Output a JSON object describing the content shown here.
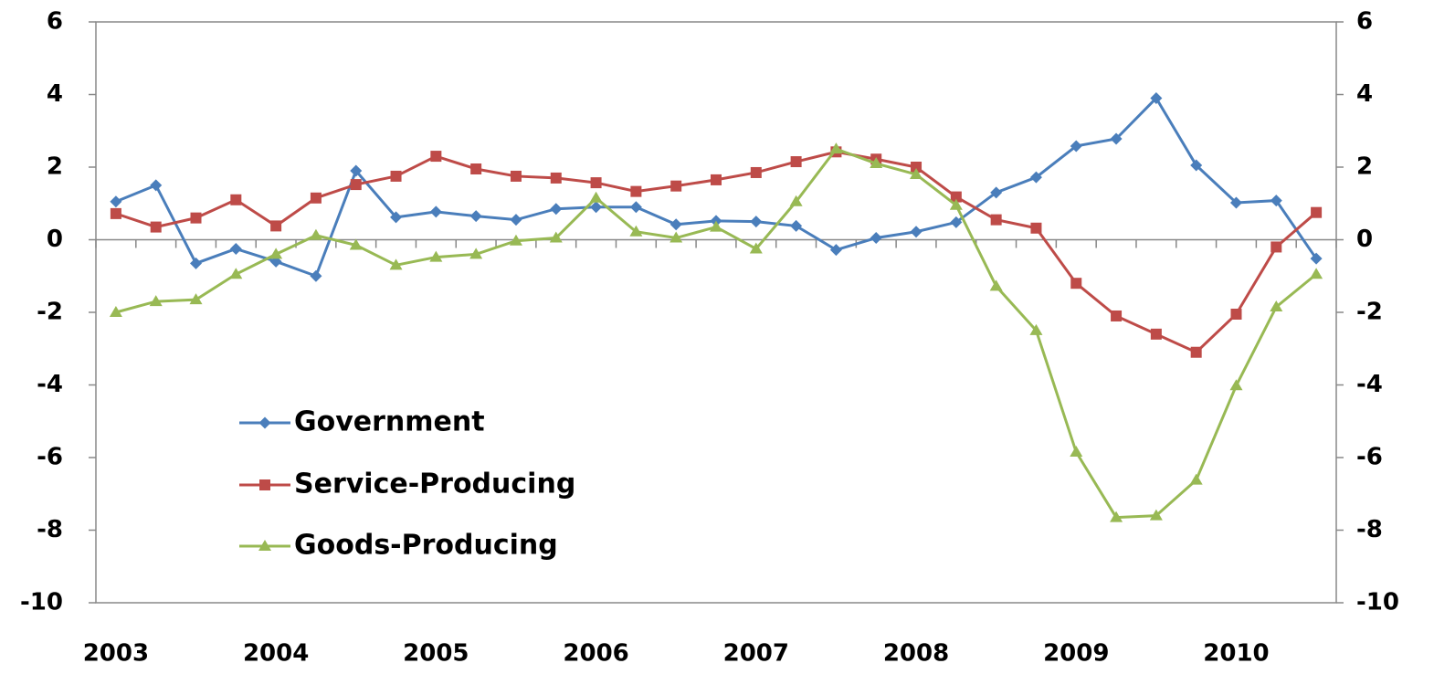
{
  "chart_data": {
    "type": "line",
    "categories": [
      "2003",
      null,
      null,
      null,
      "2004",
      null,
      null,
      null,
      "2005",
      null,
      null,
      null,
      "2006",
      null,
      null,
      null,
      "2007",
      null,
      null,
      null,
      "2008",
      null,
      null,
      null,
      "2009",
      null,
      null,
      null,
      "2010",
      null,
      null
    ],
    "series": [
      {
        "name": "Government",
        "color": "#4a7ebb",
        "marker": "diamond",
        "values": [
          1.05,
          1.5,
          -0.65,
          -0.25,
          -0.6,
          -1.0,
          1.9,
          0.62,
          0.77,
          0.65,
          0.55,
          0.85,
          0.9,
          0.9,
          0.42,
          0.52,
          0.5,
          0.38,
          -0.28,
          0.05,
          0.22,
          0.48,
          1.3,
          1.72,
          2.58,
          2.78,
          3.9,
          2.05,
          1.02,
          1.08,
          -0.52
        ]
      },
      {
        "name": "Service-Producing",
        "color": "#be4b48",
        "marker": "square",
        "values": [
          0.72,
          0.35,
          0.6,
          1.1,
          0.38,
          1.15,
          1.52,
          1.75,
          2.3,
          1.95,
          1.75,
          1.7,
          1.57,
          1.33,
          1.48,
          1.65,
          1.85,
          2.15,
          2.42,
          2.22,
          2.0,
          1.18,
          0.55,
          0.32,
          -1.2,
          -2.1,
          -2.6,
          -3.1,
          -2.05,
          -0.2,
          0.75
        ]
      },
      {
        "name": "Goods-Producing",
        "color": "#98b954",
        "marker": "triangle",
        "values": [
          -2.0,
          -1.7,
          -1.65,
          -0.95,
          -0.4,
          0.12,
          -0.15,
          -0.7,
          -0.48,
          -0.4,
          -0.03,
          0.05,
          1.15,
          0.22,
          0.05,
          0.35,
          -0.25,
          1.05,
          2.5,
          2.1,
          1.8,
          0.95,
          -1.28,
          -2.5,
          -5.85,
          -7.65,
          -7.6,
          -6.62,
          -4.02,
          -1.85,
          -0.95
        ]
      }
    ],
    "ylim": [
      -10,
      6
    ],
    "yticks": [
      -10,
      -8,
      -6,
      -4,
      -2,
      0,
      2,
      4,
      6
    ],
    "y2lim": [
      -10,
      6
    ],
    "y2ticks": [
      -10,
      -8,
      -6,
      -4,
      -2,
      0,
      2,
      4,
      6
    ],
    "grid": false,
    "legend": "lower-left"
  }
}
